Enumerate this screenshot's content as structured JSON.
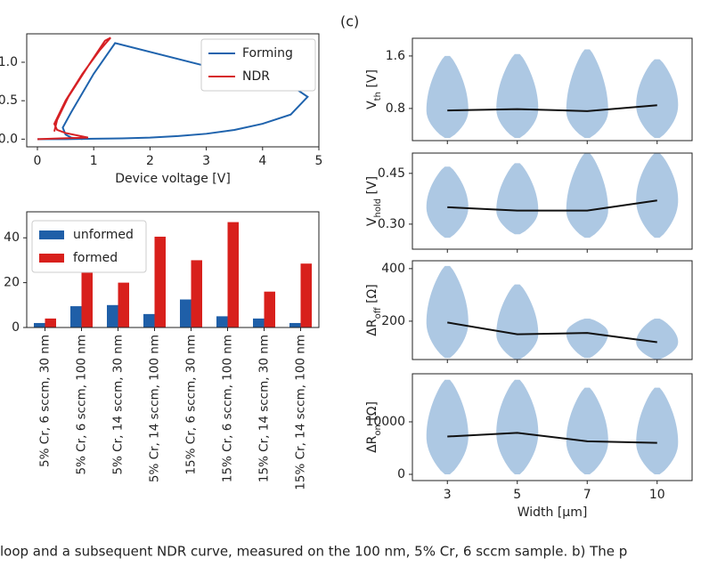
{
  "chart_data": [
    {
      "type": "line",
      "xlabel": "Device voltage [V]",
      "xlim": [
        -0.19,
        5.0
      ],
      "ylim": [
        -0.1,
        1.37
      ],
      "xticks": [
        0,
        1,
        2,
        3,
        4,
        5
      ],
      "yticks": [
        {
          "value": 0,
          "label": "0.0"
        },
        {
          "value": 0.5,
          "label": "0.5"
        },
        {
          "value": 1.0,
          "label": "1.0"
        }
      ],
      "legend": "upper right",
      "series": [
        {
          "name": "Forming",
          "color": "#1f63ad",
          "x": [
            0,
            0.5,
            1.0,
            1.5,
            2.0,
            2.5,
            3.0,
            3.5,
            4.0,
            4.5,
            4.8,
            4.6,
            3.0,
            1.38,
            1.0,
            0.6,
            0.45,
            0.5,
            0.6,
            0.8
          ],
          "values": [
            0,
            0,
            0.005,
            0.01,
            0.02,
            0.04,
            0.07,
            0.12,
            0.2,
            0.32,
            0.55,
            0.65,
            0.95,
            1.25,
            0.85,
            0.35,
            0.15,
            0.06,
            0.02,
            0
          ]
        },
        {
          "name": "NDR",
          "color": "#d62024",
          "x": [
            0,
            0.4,
            0.9,
            0.5,
            0.35,
            0.3,
            0.5,
            0.8,
            1.1,
            1.3,
            1.2,
            0.9,
            0.55,
            0.35,
            0.3
          ],
          "values": [
            0,
            0.01,
            0.02,
            0.08,
            0.12,
            0.2,
            0.5,
            0.85,
            1.15,
            1.32,
            1.28,
            0.95,
            0.55,
            0.25,
            0.1
          ]
        }
      ]
    },
    {
      "type": "bar",
      "categories": [
        "5% Cr, 6 sccm, 30 nm",
        "5% Cr, 6 sccm, 100 nm",
        "5% Cr, 14 sccm, 30 nm",
        "5% Cr, 14 sccm, 100 nm",
        "15% Cr, 6 sccm, 30 nm",
        "15% Cr, 6 sccm, 100 nm",
        "15% Cr, 14 sccm, 30 nm",
        "15% Cr, 14 sccm, 100 nm"
      ],
      "ylim": [
        0,
        51.6
      ],
      "yticks": [
        0,
        20,
        40
      ],
      "legend": "upper left",
      "series": [
        {
          "name": "unformed",
          "color": "#1f5fa8",
          "values": [
            2,
            9.5,
            10,
            6,
            12.5,
            5,
            4,
            2
          ]
        },
        {
          "name": "formed",
          "color": "#d8201c",
          "values": [
            4,
            34,
            20,
            40.5,
            30,
            47,
            16,
            28.5
          ]
        }
      ]
    },
    {
      "type": "violin",
      "panel_label": "(c)",
      "categories": [
        "3",
        "5",
        "7",
        "10"
      ],
      "xlabel": "Width [μm]",
      "color": "#adc8e3",
      "panels": [
        {
          "ylabel": [
            "V",
            "th",
            " [V]"
          ],
          "ylim": [
            0.31,
            1.87
          ],
          "yticks": [
            0.8,
            1.6
          ],
          "means": [
            0.77,
            0.79,
            0.76,
            0.85
          ],
          "ranges": [
            [
              0.35,
              1.6
            ],
            [
              0.35,
              1.63
            ],
            [
              0.35,
              1.7
            ],
            [
              0.35,
              1.55
            ]
          ]
        },
        {
          "ylabel": [
            "V",
            "hold",
            " [V]"
          ],
          "ylim": [
            0.226,
            0.51
          ],
          "yticks": [
            {
              "value": 0.3,
              "label": "0.30"
            },
            0.45
          ],
          "means": [
            0.35,
            0.34,
            0.34,
            0.37
          ],
          "ranges": [
            [
              0.26,
              0.47
            ],
            [
              0.27,
              0.48
            ],
            [
              0.26,
              0.51
            ],
            [
              0.26,
              0.51
            ]
          ]
        },
        {
          "ylabel": [
            "ΔR",
            "off",
            " [Ω]"
          ],
          "ylim": [
            54,
            430
          ],
          "yticks": [
            200,
            400
          ],
          "means": [
            195,
            150,
            155,
            120
          ],
          "ranges": [
            [
              60,
              410
            ],
            [
              55,
              340
            ],
            [
              60,
              210
            ],
            [
              55,
              210
            ]
          ]
        },
        {
          "ylabel": [
            "ΔR",
            "on",
            " [Ω]"
          ],
          "ylim": [
            -1186,
            19150
          ],
          "yticks": [
            0,
            10000
          ],
          "means": [
            7200,
            7900,
            6300,
            6000
          ],
          "ranges": [
            [
              0,
              18000
            ],
            [
              0,
              18000
            ],
            [
              0,
              16500
            ],
            [
              0,
              16500
            ]
          ]
        }
      ]
    }
  ],
  "caption": "loop and a subsequent NDR curve, measured on the 100 nm, 5% Cr, 6 sccm sample. b) The p"
}
